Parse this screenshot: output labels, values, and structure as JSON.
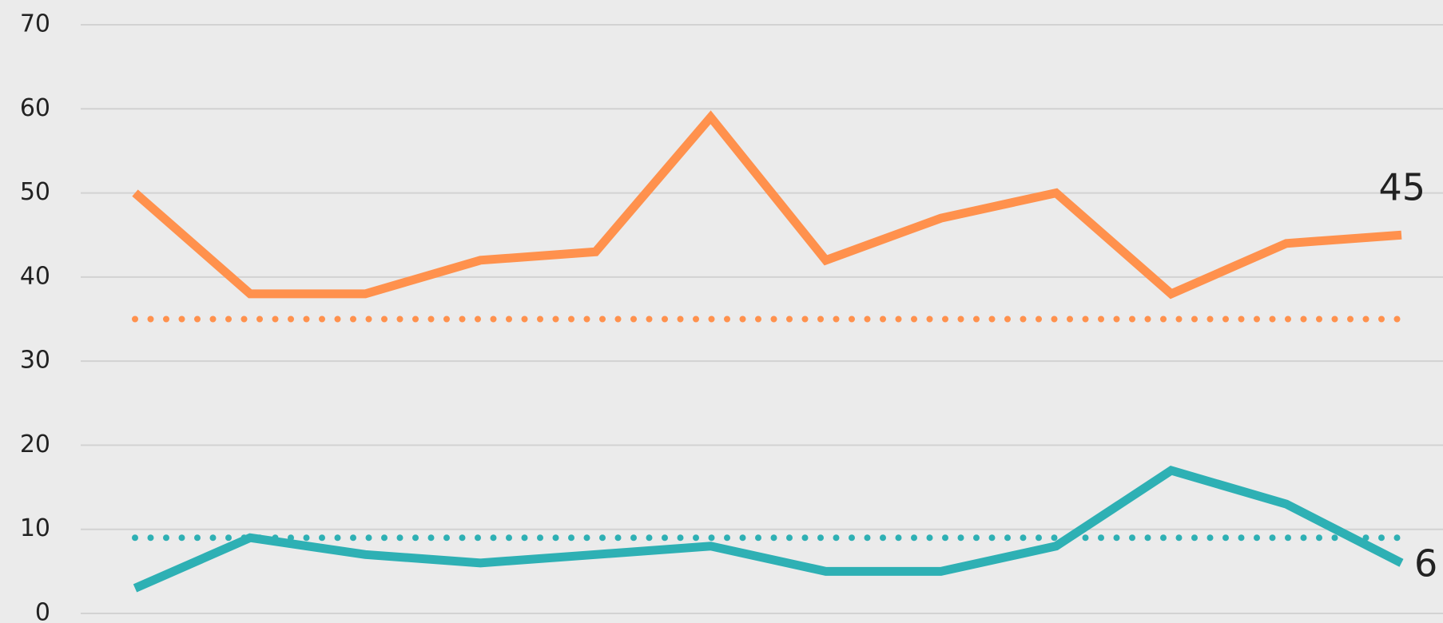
{
  "chart_data": {
    "type": "line",
    "categories": [
      null,
      null,
      null,
      null,
      null,
      null,
      null,
      null,
      null,
      null,
      null,
      null
    ],
    "series": [
      {
        "color": "#ff914d",
        "values": [
          50,
          38,
          38,
          42,
          43,
          59,
          42,
          47,
          50,
          38,
          44,
          45
        ]
      },
      {
        "color": "#2eb0b4",
        "values": [
          3,
          9,
          7,
          6,
          7,
          8,
          5,
          5,
          8,
          17,
          13,
          6
        ]
      }
    ],
    "reference_lines": [
      {
        "value": 35,
        "color": "#ff914d"
      },
      {
        "value": 9,
        "color": "#2eb0b4"
      }
    ],
    "end_labels": true,
    "ylim": [
      0,
      70
    ],
    "yticks": [
      0,
      10,
      20,
      30,
      40,
      50,
      60,
      70
    ],
    "grid": true
  }
}
